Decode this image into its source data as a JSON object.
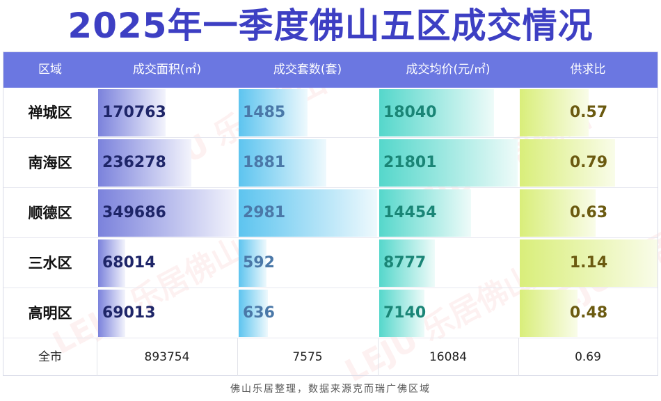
{
  "title": "2025年一季度佛山五区成交情况",
  "headers": [
    "区域",
    "成交面积(㎡)",
    "成交套数(套)",
    "成交均价(元/㎡)",
    "供求比"
  ],
  "rows": [
    {
      "district": "禅城区",
      "area": "170763",
      "units": "1485",
      "price": "18040",
      "ratio": "0.57"
    },
    {
      "district": "南海区",
      "area": "236278",
      "units": "1881",
      "price": "21801",
      "ratio": "0.79"
    },
    {
      "district": "顺德区",
      "area": "349686",
      "units": "2981",
      "price": "14454",
      "ratio": "0.63"
    },
    {
      "district": "三水区",
      "area": "68014",
      "units": "592",
      "price": "8777",
      "ratio": "1.14"
    },
    {
      "district": "高明区",
      "area": "69013",
      "units": "636",
      "price": "7140",
      "ratio": "0.48"
    }
  ],
  "total": {
    "district": "全市",
    "area": "893754",
    "units": "7575",
    "price": "16084",
    "ratio": "0.69"
  },
  "footer": "佛山乐居整理，数据来源克而瑞广佛区域",
  "watermark": "LEJU 乐居佛山",
  "chart_data": {
    "type": "table",
    "title": "2025年一季度佛山五区成交情况",
    "categories": [
      "禅城区",
      "南海区",
      "顺德区",
      "三水区",
      "高明区"
    ],
    "series": [
      {
        "name": "成交面积(㎡)",
        "values": [
          170763,
          236278,
          349686,
          68014,
          69013
        ],
        "total": 893754
      },
      {
        "name": "成交套数(套)",
        "values": [
          1485,
          1881,
          2981,
          592,
          636
        ],
        "total": 7575
      },
      {
        "name": "成交均价(元/㎡)",
        "values": [
          18040,
          21801,
          14454,
          8777,
          7140
        ],
        "total": 16084
      },
      {
        "name": "供求比",
        "values": [
          0.57,
          0.79,
          0.63,
          1.14,
          0.48
        ],
        "total": 0.69
      }
    ]
  },
  "colors": {
    "title": "#3d3fc3",
    "header_bg": "#6b77e1",
    "area_bar": [
      "#7b82dc",
      "#f3f4fc"
    ],
    "units_bar": [
      "#5dc4ef",
      "#eef9fd"
    ],
    "price_bar": [
      "#55d7cb",
      "#eefbf9"
    ],
    "ratio_bar": [
      "#d9ee7a",
      "#f9fce9"
    ],
    "area_text": "#1e2568",
    "units_text": "#4a78a8",
    "price_text": "#1a8576",
    "ratio_text": "#6b5a10"
  }
}
